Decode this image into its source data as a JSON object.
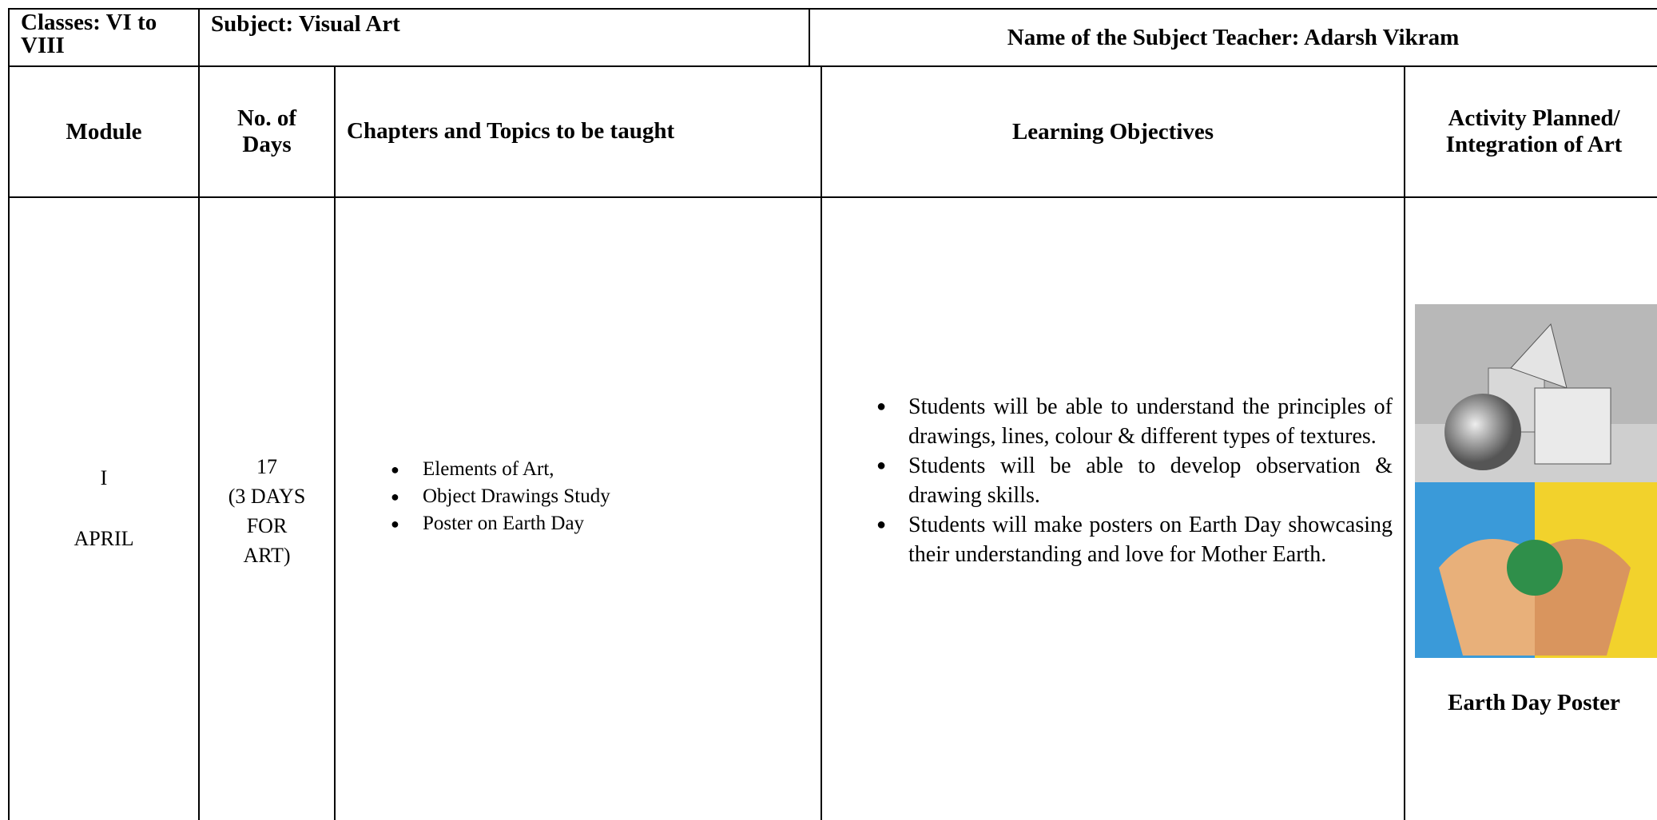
{
  "header": {
    "classes": "Classes: VI to VIII",
    "subject": "Subject: Visual Art",
    "teacher": "Name of the Subject Teacher: Adarsh Vikram"
  },
  "table": {
    "columns": [
      "Module",
      "No. of Days",
      "Chapters and Topics to be taught",
      "Learning Objectives",
      "Activity Planned/ Integration of Art"
    ],
    "rows": [
      {
        "module": [
          "I",
          "APRIL"
        ],
        "days": [
          "17",
          "(3 DAYS",
          "FOR",
          "ART)"
        ],
        "topics": [
          "Elements of Art,",
          "Object Drawings Study",
          "Poster on Earth Day"
        ],
        "objectives": [
          "Students will be able to understand the principles of drawings, lines, colour & different types of textures.",
          "Students will be able to develop observation & drawing skills.",
          "Students will make posters on Earth Day showcasing their understanding and love for Mother Earth."
        ],
        "activity": "Earth Day Poster"
      }
    ]
  }
}
